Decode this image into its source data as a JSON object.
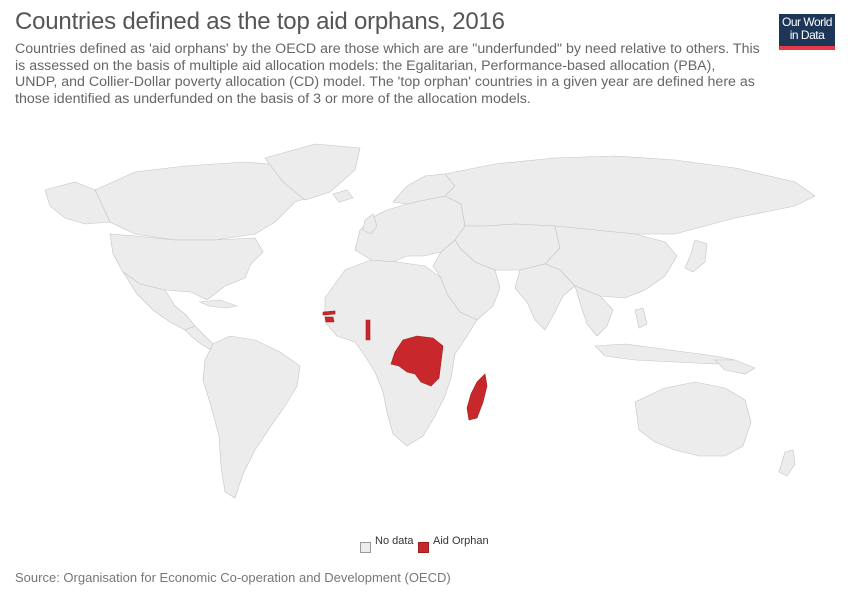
{
  "title": "Countries defined as the top aid orphans, 2016",
  "subtitle": "Countries defined as 'aid orphans' by the OECD are those which are are \"underfunded\" by need relative to others. This is assessed on the basis of multiple aid allocation models: the Egalitarian, Performance-based allocation (PBA), UNDP, and Collier-Dollar poverty allocation (CD) model. The 'top orphan' countries in a given year are defined here as those identified as underfunded on the basis of 3 or more of the allocation models.",
  "logo": {
    "line1": "Our World",
    "line2": "in Data"
  },
  "legend": [
    {
      "label": "No data",
      "color": "#ececec"
    },
    {
      "label": "Aid Orphan",
      "color": "#c8282b"
    }
  ],
  "map_data": {
    "year": 2016,
    "categories": [
      "No data",
      "Aid Orphan"
    ],
    "aid_orphans": [
      "Gambia",
      "Guinea-Bissau",
      "Togo",
      "Democratic Republic of Congo",
      "Madagascar"
    ]
  },
  "source": "Source: Organisation for Economic Co-operation and Development (OECD)",
  "colors": {
    "nodata": "#ececec",
    "orphan": "#c8282b",
    "logo_bg": "#1d3557",
    "logo_accent": "#e63946"
  }
}
